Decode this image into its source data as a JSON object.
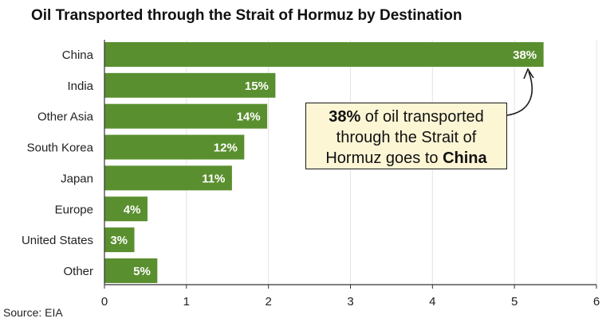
{
  "title": "Oil Transported through the Strait of Hormuz by Destination",
  "source": "Source: EIA",
  "colors": {
    "bar": "#5a8f2f",
    "grid": "#e4e4e4",
    "axis": "#333333",
    "callout_bg": "#fdf6d5"
  },
  "callout": {
    "highlight_pct": "38%",
    "text_1": " of oil transported through the Strait of Hormuz goes to ",
    "highlight_dest": "China"
  },
  "chart_data": {
    "type": "bar",
    "orientation": "horizontal",
    "categories": [
      "China",
      "India",
      "Other Asia",
      "South Korea",
      "Japan",
      "Europe",
      "United States",
      "Other"
    ],
    "values": [
      5.35,
      2.08,
      1.98,
      1.7,
      1.55,
      0.52,
      0.36,
      0.64
    ],
    "data_labels": [
      "38%",
      "15%",
      "14%",
      "12%",
      "11%",
      "4%",
      "3%",
      "5%"
    ],
    "xlim": [
      0,
      6
    ],
    "xticks": [
      "0",
      "1",
      "2",
      "3",
      "4",
      "5",
      "6"
    ],
    "grid": "vertical",
    "title": "Oil Transported through the Strait of Hormuz by Destination"
  }
}
